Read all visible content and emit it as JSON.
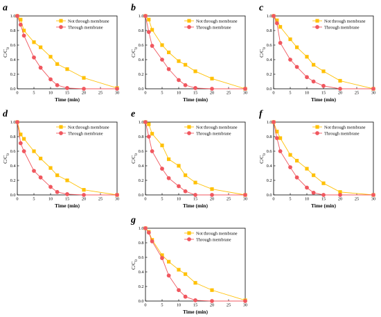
{
  "series_colors": {
    "Not through membrane": "#FFC107",
    "Through membrane": "#F0575F"
  },
  "chart_data": [
    {
      "type": "line",
      "panel_label": "a",
      "xlabel": "Time (min)",
      "ylabel": "C/C0",
      "xlim": [
        0,
        30
      ],
      "ylim": [
        0,
        1.0
      ],
      "xticks": [
        0,
        5,
        10,
        15,
        20,
        25,
        30
      ],
      "yticks": [
        0.0,
        0.2,
        0.4,
        0.6,
        0.8,
        1.0
      ],
      "legend_position": "top-right",
      "series": [
        {
          "name": "Not through membrane",
          "x": [
            0,
            1,
            2,
            5,
            7,
            10,
            12,
            15,
            20,
            30
          ],
          "y": [
            1.0,
            0.95,
            0.8,
            0.64,
            0.57,
            0.44,
            0.34,
            0.27,
            0.15,
            0.01
          ]
        },
        {
          "name": "Through membrane",
          "x": [
            0,
            1,
            2,
            5,
            7,
            10,
            12,
            15,
            20,
            30
          ],
          "y": [
            1.0,
            0.88,
            0.73,
            0.43,
            0.29,
            0.13,
            0.05,
            0.01,
            0.0,
            0.0
          ]
        }
      ]
    },
    {
      "type": "line",
      "panel_label": "b",
      "xlabel": "Time (min)",
      "ylabel": "C/C0",
      "xlim": [
        0,
        30
      ],
      "ylim": [
        0,
        1.0
      ],
      "xticks": [
        0,
        5,
        10,
        15,
        20,
        25,
        30
      ],
      "yticks": [
        0.0,
        0.2,
        0.4,
        0.6,
        0.8,
        1.0
      ],
      "legend_position": "top-right",
      "series": [
        {
          "name": "Not through membrane",
          "x": [
            0,
            1,
            2,
            5,
            7,
            10,
            12,
            15,
            20,
            30
          ],
          "y": [
            1.0,
            0.95,
            0.81,
            0.6,
            0.5,
            0.38,
            0.33,
            0.24,
            0.14,
            0.0
          ]
        },
        {
          "name": "Through membrane",
          "x": [
            0,
            1,
            2,
            5,
            7,
            10,
            12,
            15,
            20,
            30
          ],
          "y": [
            1.0,
            0.78,
            0.59,
            0.4,
            0.27,
            0.12,
            0.05,
            0.01,
            0.0,
            0.0
          ]
        }
      ]
    },
    {
      "type": "line",
      "panel_label": "c",
      "xlabel": "Time (min)",
      "ylabel": "C/C0",
      "xlim": [
        0,
        30
      ],
      "ylim": [
        0,
        1.0
      ],
      "xticks": [
        0,
        5,
        10,
        15,
        20,
        25,
        30
      ],
      "yticks": [
        0.0,
        0.2,
        0.4,
        0.6,
        0.8,
        1.0
      ],
      "legend_position": "top-right",
      "series": [
        {
          "name": "Not through membrane",
          "x": [
            0,
            1,
            2,
            5,
            7,
            10,
            12,
            15,
            20,
            30
          ],
          "y": [
            1.0,
            0.94,
            0.85,
            0.68,
            0.57,
            0.44,
            0.33,
            0.24,
            0.11,
            0.0
          ]
        },
        {
          "name": "Through membrane",
          "x": [
            0,
            1,
            2,
            5,
            7,
            10,
            12,
            15,
            20,
            30
          ],
          "y": [
            1.0,
            0.9,
            0.63,
            0.4,
            0.3,
            0.16,
            0.1,
            0.04,
            0.0,
            0.0
          ]
        }
      ]
    },
    {
      "type": "line",
      "panel_label": "d",
      "xlabel": "Time (min)",
      "ylabel": "C/C0",
      "xlim": [
        0,
        30
      ],
      "ylim": [
        0,
        1.0
      ],
      "xticks": [
        0,
        5,
        10,
        15,
        20,
        25,
        30
      ],
      "yticks": [
        0.0,
        0.2,
        0.4,
        0.6,
        0.8,
        1.0
      ],
      "legend_position": "top-right",
      "series": [
        {
          "name": "Not through membrane",
          "x": [
            0,
            1,
            2,
            5,
            7,
            10,
            12,
            15,
            20,
            30
          ],
          "y": [
            1.0,
            0.83,
            0.77,
            0.6,
            0.5,
            0.37,
            0.27,
            0.2,
            0.07,
            0.0
          ]
        },
        {
          "name": "Through membrane",
          "x": [
            0,
            1,
            2,
            5,
            7,
            10,
            12,
            15,
            20,
            30
          ],
          "y": [
            1.0,
            0.71,
            0.6,
            0.33,
            0.24,
            0.11,
            0.04,
            0.01,
            0.0,
            0.0
          ]
        }
      ]
    },
    {
      "type": "line",
      "panel_label": "e",
      "xlabel": "Time (min)",
      "ylabel": "C/C0",
      "xlim": [
        0,
        30
      ],
      "ylim": [
        0,
        1.0
      ],
      "xticks": [
        0,
        5,
        10,
        15,
        20,
        25,
        30
      ],
      "yticks": [
        0.0,
        0.2,
        0.4,
        0.6,
        0.8,
        1.0
      ],
      "legend_position": "top-right",
      "series": [
        {
          "name": "Not through membrane",
          "x": [
            0,
            1,
            2,
            5,
            7,
            10,
            12,
            15,
            20,
            30
          ],
          "y": [
            1.0,
            0.97,
            0.84,
            0.68,
            0.49,
            0.4,
            0.27,
            0.17,
            0.08,
            0.0
          ]
        },
        {
          "name": "Through membrane",
          "x": [
            0,
            1,
            2,
            5,
            7,
            10,
            12,
            15,
            20,
            30
          ],
          "y": [
            1.0,
            0.8,
            0.6,
            0.36,
            0.23,
            0.12,
            0.05,
            0.0,
            0.0,
            0.0
          ]
        }
      ]
    },
    {
      "type": "line",
      "panel_label": "f",
      "xlabel": "Time (min)",
      "ylabel": "C/C0",
      "xlim": [
        0,
        30
      ],
      "ylim": [
        0,
        1.0
      ],
      "xticks": [
        0,
        5,
        10,
        15,
        20,
        25,
        30
      ],
      "yticks": [
        0.0,
        0.2,
        0.4,
        0.6,
        0.8,
        1.0
      ],
      "legend_position": "top-right",
      "series": [
        {
          "name": "Not through membrane",
          "x": [
            0,
            1,
            2,
            5,
            7,
            10,
            12,
            15,
            20,
            30
          ],
          "y": [
            1.0,
            0.87,
            0.78,
            0.55,
            0.47,
            0.36,
            0.27,
            0.16,
            0.04,
            0.0
          ]
        },
        {
          "name": "Through membrane",
          "x": [
            0,
            1,
            2,
            5,
            7,
            10,
            12,
            15,
            20,
            30
          ],
          "y": [
            1.0,
            0.78,
            0.6,
            0.38,
            0.24,
            0.1,
            0.03,
            0.0,
            0.0,
            0.0
          ]
        }
      ]
    },
    {
      "type": "line",
      "panel_label": "g",
      "xlabel": "Time (min)",
      "ylabel": "C/C0",
      "xlim": [
        0,
        30
      ],
      "ylim": [
        0,
        1.0
      ],
      "xticks": [
        0,
        5,
        10,
        15,
        20,
        25,
        30
      ],
      "yticks": [
        0.0,
        0.2,
        0.4,
        0.6,
        0.8,
        1.0
      ],
      "legend_position": "top-right",
      "series": [
        {
          "name": "Not through membrane",
          "x": [
            0,
            1,
            2,
            5,
            7,
            10,
            12,
            15,
            20,
            30
          ],
          "y": [
            1.0,
            0.95,
            0.84,
            0.63,
            0.54,
            0.43,
            0.37,
            0.25,
            0.15,
            0.01
          ]
        },
        {
          "name": "Through membrane",
          "x": [
            0,
            1,
            2,
            5,
            7,
            10,
            12,
            15,
            20,
            30
          ],
          "y": [
            1.0,
            0.94,
            0.82,
            0.59,
            0.35,
            0.15,
            0.06,
            0.01,
            0.0,
            0.0
          ]
        }
      ]
    }
  ]
}
